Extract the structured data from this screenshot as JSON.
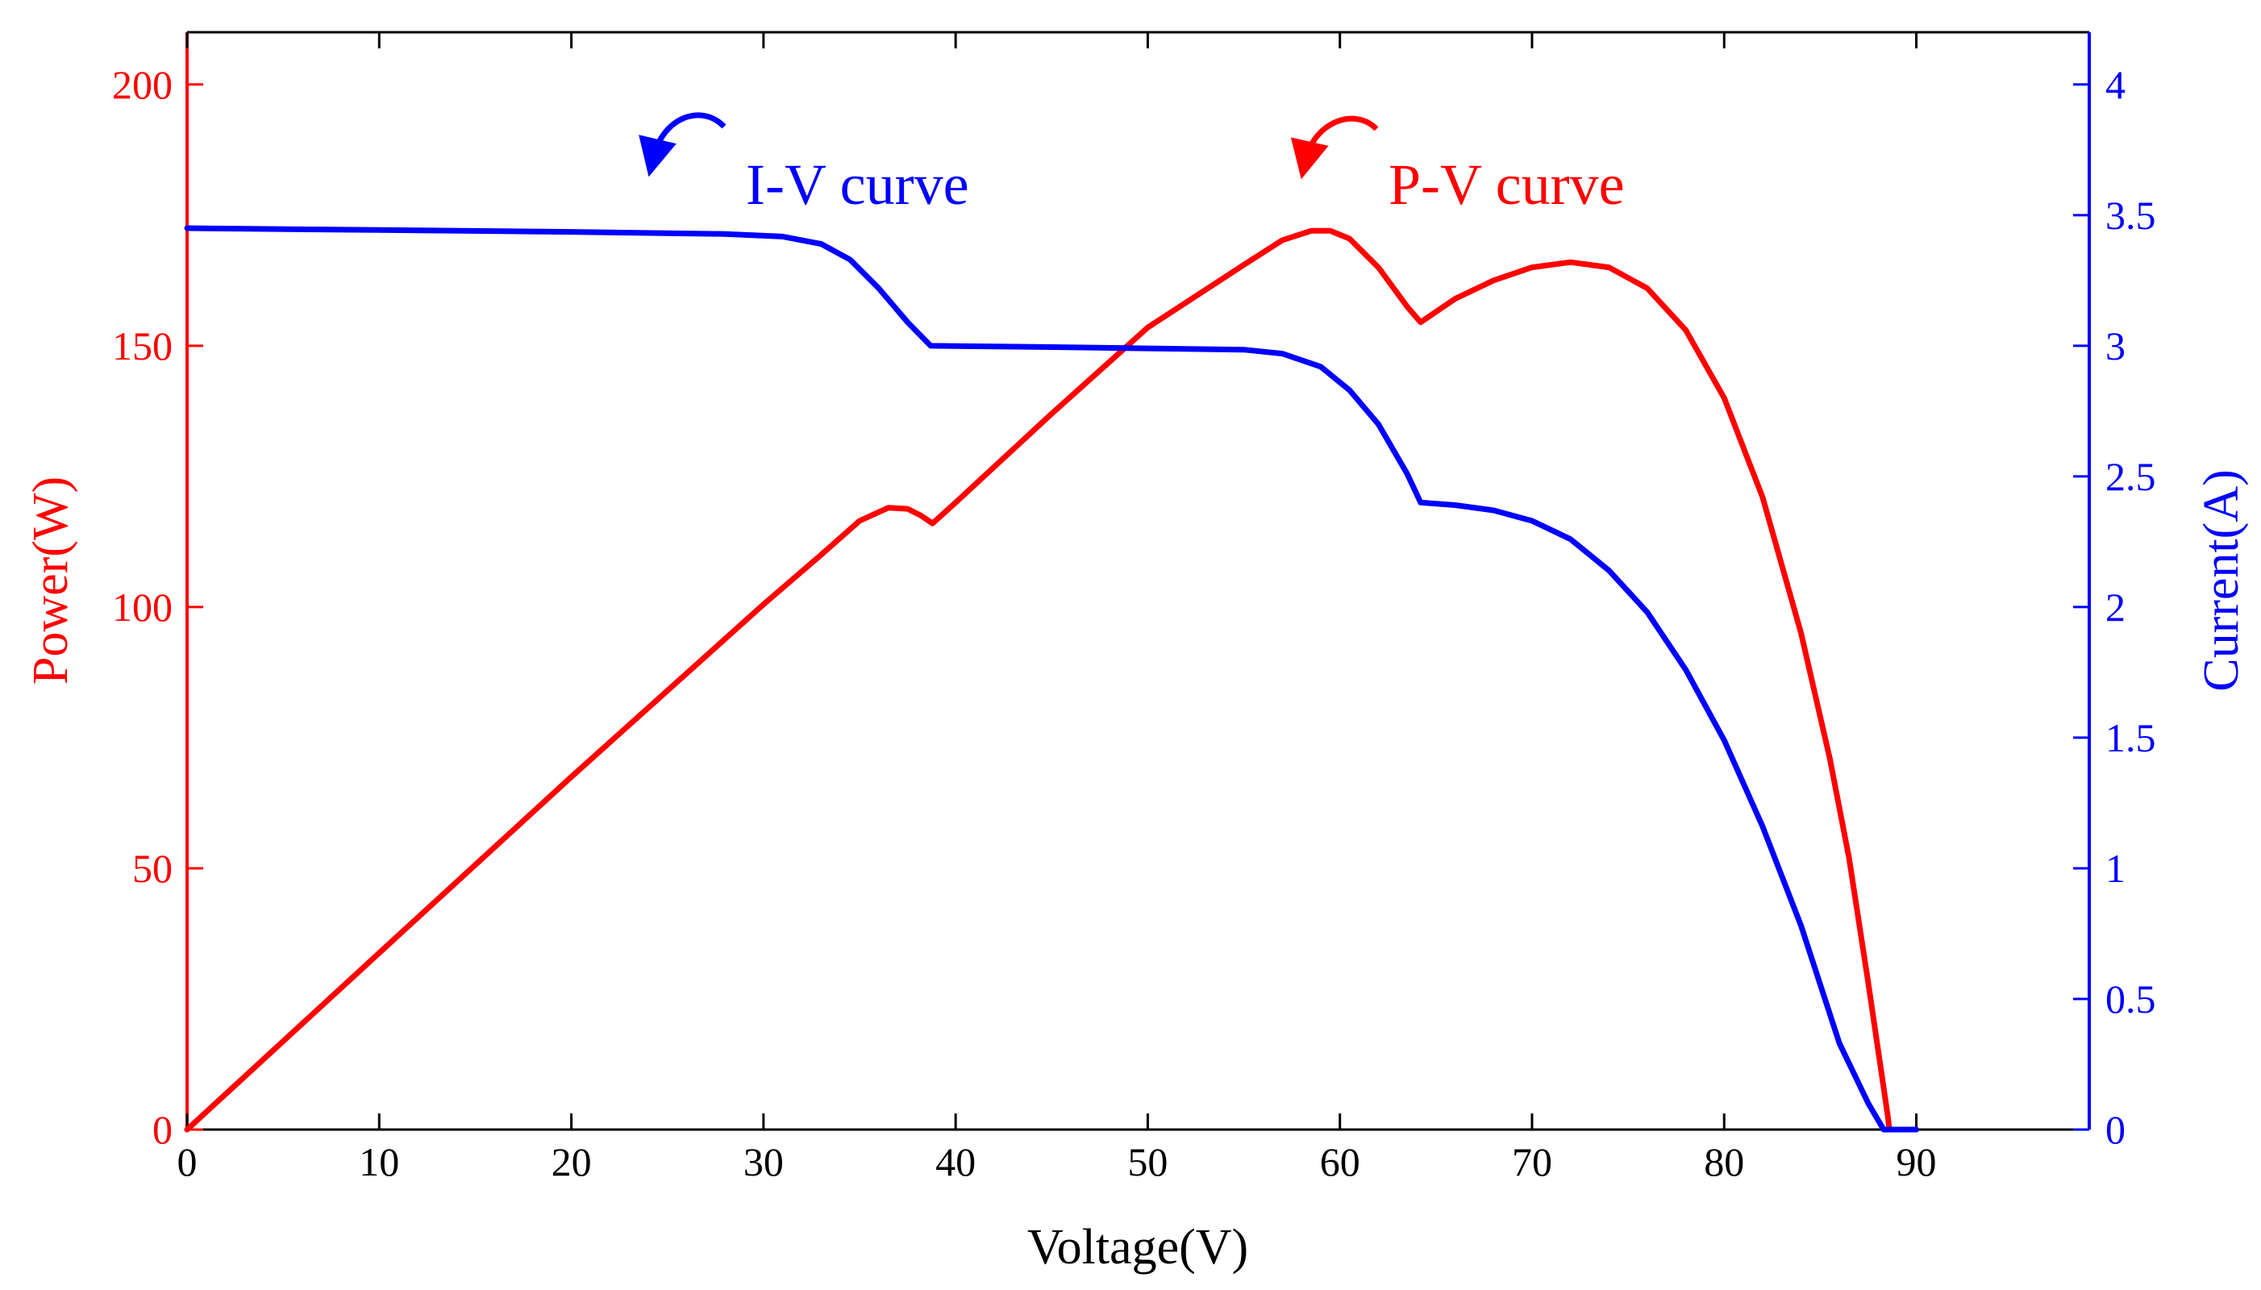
{
  "chart_data": {
    "type": "line",
    "title": "",
    "xlabel": "Voltage(V)",
    "ylabel_left": "Power(W)",
    "ylabel_right": "Current(A)",
    "xlim": [
      0,
      99
    ],
    "ylim_left": [
      0,
      210
    ],
    "ylim_right": [
      0,
      4.2
    ],
    "xticks": [
      0,
      10,
      20,
      30,
      40,
      50,
      60,
      70,
      80,
      90
    ],
    "xtick_labels": [
      "0",
      "10",
      "20",
      "30",
      "40",
      "50",
      "60",
      "70",
      "80",
      "90"
    ],
    "yticks_left": [
      0,
      50,
      100,
      150,
      200
    ],
    "ytick_labels_left": [
      "0",
      "50",
      "100",
      "150",
      "200"
    ],
    "yticks_right": [
      0,
      0.5,
      1,
      1.5,
      2,
      2.5,
      3,
      3.5,
      4
    ],
    "ytick_labels_right": [
      "0",
      "0.5",
      "1",
      "1.5",
      "2",
      "2.5",
      "3",
      "3.5",
      "4"
    ],
    "grid": false,
    "colors": {
      "power": "#ff0000",
      "current": "#0000ff",
      "axis": "#000000"
    },
    "series": [
      {
        "name": "P-V curve",
        "axis": "left",
        "color": "#ff0000",
        "points": [
          [
            0,
            0
          ],
          [
            10,
            33.8
          ],
          [
            20,
            67.5
          ],
          [
            30,
            100.5
          ],
          [
            33,
            110
          ],
          [
            35,
            116.5
          ],
          [
            36.5,
            119
          ],
          [
            37.5,
            118.8
          ],
          [
            38.2,
            117.5
          ],
          [
            38.8,
            116
          ],
          [
            40,
            120
          ],
          [
            45,
            137
          ],
          [
            50,
            153.5
          ],
          [
            55,
            165.5
          ],
          [
            57,
            170.2
          ],
          [
            58.5,
            172
          ],
          [
            59.5,
            172
          ],
          [
            60.5,
            170.5
          ],
          [
            62,
            165
          ],
          [
            63.5,
            157.5
          ],
          [
            64.2,
            154.5
          ],
          [
            66,
            159
          ],
          [
            68,
            162.5
          ],
          [
            70,
            165
          ],
          [
            72,
            166
          ],
          [
            74,
            165
          ],
          [
            76,
            161
          ],
          [
            78,
            153
          ],
          [
            80,
            140
          ],
          [
            82,
            121
          ],
          [
            84,
            95
          ],
          [
            85.5,
            71
          ],
          [
            86.5,
            52
          ],
          [
            87.5,
            28
          ],
          [
            88.5,
            3
          ],
          [
            88.6,
            0
          ]
        ]
      },
      {
        "name": "I-V curve",
        "axis": "right",
        "color": "#0000ff",
        "points": [
          [
            0,
            3.45
          ],
          [
            10,
            3.443
          ],
          [
            20,
            3.436
          ],
          [
            28,
            3.428
          ],
          [
            31,
            3.418
          ],
          [
            33,
            3.39
          ],
          [
            34.5,
            3.33
          ],
          [
            36,
            3.22
          ],
          [
            37.5,
            3.09
          ],
          [
            38.7,
            3.0
          ],
          [
            40,
            2.999
          ],
          [
            45,
            2.995
          ],
          [
            50,
            2.99
          ],
          [
            55,
            2.985
          ],
          [
            57,
            2.97
          ],
          [
            59,
            2.92
          ],
          [
            60.5,
            2.83
          ],
          [
            62,
            2.7
          ],
          [
            63.5,
            2.51
          ],
          [
            64.2,
            2.4
          ],
          [
            66,
            2.39
          ],
          [
            68,
            2.37
          ],
          [
            70,
            2.33
          ],
          [
            72,
            2.26
          ],
          [
            74,
            2.14
          ],
          [
            76,
            1.98
          ],
          [
            78,
            1.76
          ],
          [
            80,
            1.49
          ],
          [
            82,
            1.16
          ],
          [
            84,
            0.78
          ],
          [
            86,
            0.33
          ],
          [
            87.5,
            0.1
          ],
          [
            88.3,
            0.0
          ],
          [
            90,
            0.0
          ]
        ]
      }
    ],
    "annotations": [
      {
        "text": "I-V curve",
        "color": "#0000ff",
        "points_to": "right"
      },
      {
        "text": "P-V curve",
        "color": "#ff0000",
        "points_to": "left"
      }
    ]
  }
}
